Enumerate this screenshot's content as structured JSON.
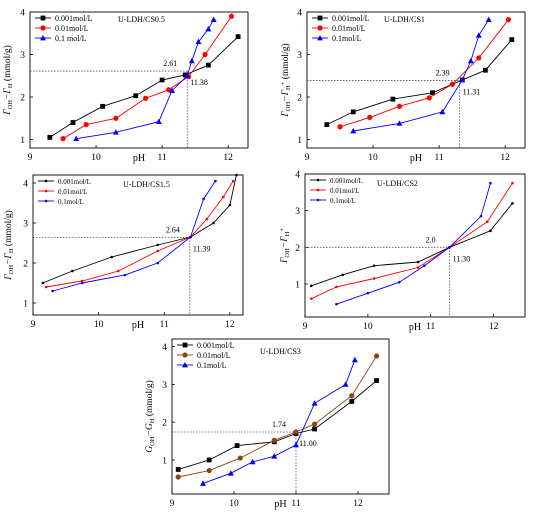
{
  "chart_data": [
    {
      "type": "line",
      "title": "U-LDH/CS0.5",
      "xlabel": "pH",
      "ylabel_main": "Γ",
      "ylabel_sub1": "OH",
      "ylabel_mid": "−Γ",
      "ylabel_sub2": "H",
      "ylabel_unit": " (mmol/g)",
      "xlim": [
        9,
        12.3
      ],
      "ylim": [
        0.8,
        4.0
      ],
      "xticks": [
        9,
        10,
        11,
        12
      ],
      "yticks": [
        1,
        2,
        3,
        4
      ],
      "pzc": {
        "x": 11.38,
        "y": 2.61,
        "x_label": "11.38",
        "y_label": "2.61"
      },
      "legend_position": "top-left",
      "series": [
        {
          "name": "0.001mol/L",
          "color": "#000000",
          "marker": "square",
          "x": [
            9.3,
            9.65,
            10.1,
            10.6,
            11.0,
            11.35,
            11.7,
            12.15
          ],
          "y": [
            1.05,
            1.4,
            1.78,
            2.03,
            2.4,
            2.52,
            2.75,
            3.42
          ]
        },
        {
          "name": "0.01mol/L",
          "color": "#ff0000",
          "marker": "circle",
          "x": [
            9.5,
            9.85,
            10.3,
            10.75,
            11.1,
            11.4,
            11.65,
            12.05
          ],
          "y": [
            1.02,
            1.35,
            1.5,
            1.97,
            2.17,
            2.48,
            3.0,
            3.9
          ]
        },
        {
          "name": "0.1 mol/L",
          "color": "#0000ff",
          "marker": "triangle",
          "x": [
            9.7,
            10.3,
            10.95,
            11.15,
            11.38,
            11.45,
            11.55,
            11.7,
            11.78
          ],
          "y": [
            1.02,
            1.17,
            1.42,
            2.15,
            2.5,
            2.85,
            3.3,
            3.6,
            3.82
          ]
        }
      ]
    },
    {
      "type": "line",
      "title": "U-LDH/CS1",
      "xlabel": "pH",
      "ylabel_main": "Γ",
      "ylabel_sub1": "OH",
      "ylabel_mid": "−Γ",
      "ylabel_sub2": "H",
      "ylabel_sup2": "+",
      "ylabel_unit": " (mmol/g)",
      "xlim": [
        9,
        12.3
      ],
      "ylim": [
        0.8,
        4.0
      ],
      "xticks": [
        9,
        10,
        11,
        12
      ],
      "yticks": [
        1,
        2,
        3,
        4
      ],
      "pzc": {
        "x": 11.31,
        "y": 2.39,
        "x_label": "11.31",
        "y_label": "2.39"
      },
      "legend_position": "top-left",
      "series": [
        {
          "name": "0.001mol/L",
          "color": "#000000",
          "marker": "square",
          "x": [
            9.3,
            9.7,
            10.3,
            10.9,
            11.35,
            11.7,
            12.1
          ],
          "y": [
            1.35,
            1.65,
            1.95,
            2.1,
            2.4,
            2.63,
            3.35
          ]
        },
        {
          "name": "0.01mol/L",
          "color": "#ff0000",
          "marker": "circle",
          "x": [
            9.5,
            9.95,
            10.4,
            10.85,
            11.2,
            11.6,
            12.05
          ],
          "y": [
            1.3,
            1.52,
            1.78,
            1.98,
            2.3,
            2.92,
            3.82
          ]
        },
        {
          "name": "0.1mol/L",
          "color": "#0000ff",
          "marker": "triangle",
          "x": [
            9.7,
            10.4,
            11.05,
            11.35,
            11.48,
            11.6,
            11.75
          ],
          "y": [
            1.2,
            1.38,
            1.65,
            2.4,
            2.85,
            3.45,
            3.82
          ]
        }
      ]
    },
    {
      "type": "line",
      "title": "U-LDH/CS1.5",
      "xlabel": "pH",
      "ylabel_main": "Γ",
      "ylabel_sub1": "OH",
      "ylabel_mid": "−Γ",
      "ylabel_sub2": "H",
      "ylabel_unit": " (mmol/g)",
      "xlim": [
        9,
        12.2
      ],
      "ylim": [
        0.7,
        4.2
      ],
      "xticks": [
        9,
        10,
        11,
        12
      ],
      "yticks": [
        1,
        2,
        3,
        4
      ],
      "pzc": {
        "x": 11.39,
        "y": 2.64,
        "x_label": "11.39",
        "y_label": "2.64"
      },
      "legend_position": "top-left",
      "series": [
        {
          "name": "0.001mol/L",
          "color": "#000000",
          "marker": "dot",
          "x": [
            9.15,
            9.6,
            10.2,
            10.9,
            11.4,
            11.75,
            12.0,
            12.1
          ],
          "y": [
            1.5,
            1.8,
            2.15,
            2.45,
            2.65,
            3.0,
            3.45,
            4.2
          ]
        },
        {
          "name": "0.01mol/L",
          "color": "#ff0000",
          "marker": "dot",
          "x": [
            9.2,
            9.75,
            10.3,
            10.9,
            11.4,
            11.65,
            11.9,
            12.05
          ],
          "y": [
            1.4,
            1.55,
            1.8,
            2.3,
            2.65,
            3.1,
            3.65,
            4.05
          ]
        },
        {
          "name": "0.1mol/L",
          "color": "#0000ff",
          "marker": "dot",
          "x": [
            9.3,
            9.75,
            10.4,
            10.9,
            11.4,
            11.6,
            11.78
          ],
          "y": [
            1.3,
            1.5,
            1.7,
            2.0,
            2.65,
            3.6,
            4.05
          ]
        }
      ]
    },
    {
      "type": "line",
      "title": "U-LDH/CS2",
      "xlabel": "pH",
      "ylabel_main": "Γ",
      "ylabel_sub1": "OH",
      "ylabel_mid": "−Γ",
      "ylabel_sub2": "H",
      "ylabel_sup2": "+",
      "ylabel_unit": "",
      "xlim": [
        9,
        12.5
      ],
      "ylim": [
        0.1,
        4.0
      ],
      "xticks": [
        9,
        10,
        11,
        12
      ],
      "yticks": [
        1,
        2,
        3,
        4
      ],
      "pzc": {
        "x": 11.3,
        "y": 2.0,
        "x_label": "11.30",
        "y_label": "2.0"
      },
      "legend_position": "top-left",
      "series": [
        {
          "name": "0.001mol/L",
          "color": "#000000",
          "marker": "dot",
          "x": [
            9.1,
            9.6,
            10.1,
            10.8,
            11.3,
            11.95,
            12.3
          ],
          "y": [
            0.95,
            1.25,
            1.5,
            1.6,
            2.0,
            2.45,
            3.2
          ]
        },
        {
          "name": "0.01mol/L",
          "color": "#ff0000",
          "marker": "dot",
          "x": [
            9.1,
            9.5,
            10.1,
            10.8,
            11.3,
            11.9,
            12.3
          ],
          "y": [
            0.6,
            0.92,
            1.15,
            1.45,
            2.0,
            2.7,
            3.75
          ]
        },
        {
          "name": "0.1mol/L",
          "color": "#0000ff",
          "marker": "dot",
          "x": [
            9.5,
            10.0,
            10.5,
            10.9,
            11.3,
            11.8,
            11.95
          ],
          "y": [
            0.45,
            0.75,
            1.05,
            1.5,
            2.0,
            2.85,
            3.75
          ]
        }
      ]
    },
    {
      "type": "line",
      "title": "U-LDH/CS3",
      "xlabel": "pH",
      "ylabel_main": "G",
      "ylabel_sub1": "OH",
      "ylabel_mid": "−G",
      "ylabel_sub2": "H",
      "ylabel_unit": " (mmol/g)",
      "xlim": [
        9,
        12.5
      ],
      "ylim": [
        0.1,
        4.2
      ],
      "xticks": [
        9,
        10,
        11,
        12
      ],
      "yticks": [
        1,
        2,
        3,
        4
      ],
      "pzc": {
        "x": 11.0,
        "y": 1.74,
        "x_label": "11.00",
        "y_label": "1.74"
      },
      "legend_position": "top-left",
      "series": [
        {
          "name": "0.001mol/L",
          "color": "#000000",
          "marker": "square",
          "x": [
            9.1,
            9.6,
            10.05,
            10.65,
            11.0,
            11.3,
            11.9,
            12.3
          ],
          "y": [
            0.75,
            1.0,
            1.38,
            1.48,
            1.7,
            1.82,
            2.55,
            3.1
          ]
        },
        {
          "name": "0.01mol/L",
          "color": "#8b4513",
          "marker": "circle",
          "x": [
            9.1,
            9.6,
            10.1,
            10.65,
            11.0,
            11.3,
            11.9,
            12.3
          ],
          "y": [
            0.55,
            0.72,
            1.05,
            1.52,
            1.74,
            1.95,
            2.7,
            3.75
          ]
        },
        {
          "name": "0.1mol/L",
          "color": "#0000ff",
          "marker": "triangle",
          "x": [
            9.5,
            9.95,
            10.3,
            10.65,
            11.0,
            11.3,
            11.8,
            11.95
          ],
          "y": [
            0.38,
            0.65,
            0.95,
            1.1,
            1.4,
            2.5,
            3.0,
            3.65
          ]
        }
      ]
    }
  ]
}
